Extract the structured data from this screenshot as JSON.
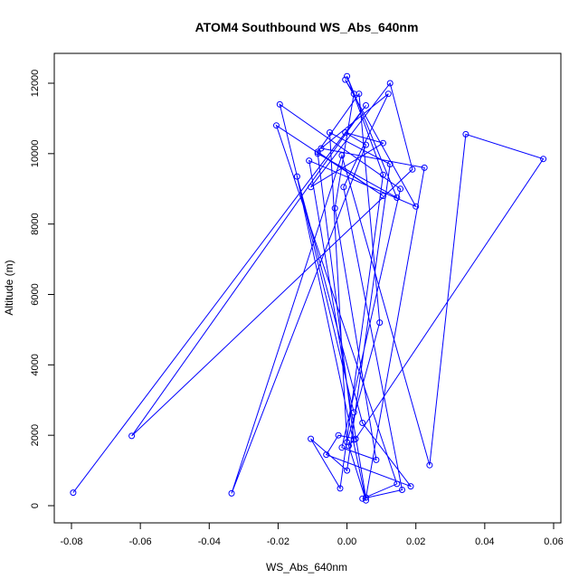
{
  "chart_data": {
    "type": "line",
    "title": "ATOM4 Southbound WS_Abs_640nm",
    "xlabel": "WS_Abs_640nm",
    "ylabel": "Altitude (m)",
    "xlim": [
      -0.08,
      0.06
    ],
    "ylim": [
      0,
      12000
    ],
    "x_ticks": [
      -0.08,
      -0.06,
      -0.04,
      -0.02,
      0.0,
      0.02,
      0.04,
      0.06
    ],
    "x_tick_labels": [
      "-0.08",
      "-0.06",
      "-0.04",
      "-0.02",
      "0.00",
      "0.02",
      "0.04",
      "0.06"
    ],
    "y_ticks": [
      0,
      2000,
      4000,
      6000,
      8000,
      10000,
      12000
    ],
    "y_tick_labels": [
      "0",
      "2000",
      "4000",
      "6000",
      "8000",
      "10000",
      "12000"
    ],
    "grid": false,
    "line_color": "#0000ff",
    "marker": "open-circle",
    "x": [
      -0.0795,
      0.0055,
      -0.0625,
      0.019,
      0.0125,
      -0.0105,
      0.0105,
      -0.0005,
      0.0055,
      -0.0335,
      -0.0015,
      0.024,
      0.0345,
      0.057,
      0.0025,
      -0.0025,
      -0.006,
      0.0185,
      0.0045,
      -0.0145,
      0.0055,
      0.0005,
      0.002,
      -0.0085,
      0.0145,
      0.0,
      0.0105,
      -0.002,
      -0.0105,
      0.0,
      0.0125,
      -0.005,
      0.0,
      0.0095,
      0.0035,
      -0.0085,
      0.0105,
      -0.0205,
      0.0145,
      0.0045,
      0.016,
      -0.001,
      0.012,
      -0.0075,
      0.0225,
      0.0055,
      -0.011,
      0.02,
      -0.0005,
      0.002,
      -0.0035,
      0.0085,
      -0.0015,
      0.0155,
      -0.0195,
      0.002
    ],
    "y": [
      370,
      11370,
      1980,
      9550,
      12000,
      9050,
      10300,
      10600,
      10250,
      350,
      9950,
      1150,
      10550,
      9850,
      1900,
      2000,
      1450,
      550,
      2350,
      9350,
      150,
      1700,
      1870,
      10000,
      8750,
      12200,
      9400,
      490,
      1900,
      1000,
      9700,
      10600,
      1800,
      5200,
      11700,
      10050,
      8800,
      10800,
      620,
      200,
      450,
      9050,
      11700,
      10150,
      9600,
      230,
      9800,
      8500,
      12100,
      11700,
      8450,
      1300,
      1650,
      9000,
      11400,
      2650
    ]
  }
}
